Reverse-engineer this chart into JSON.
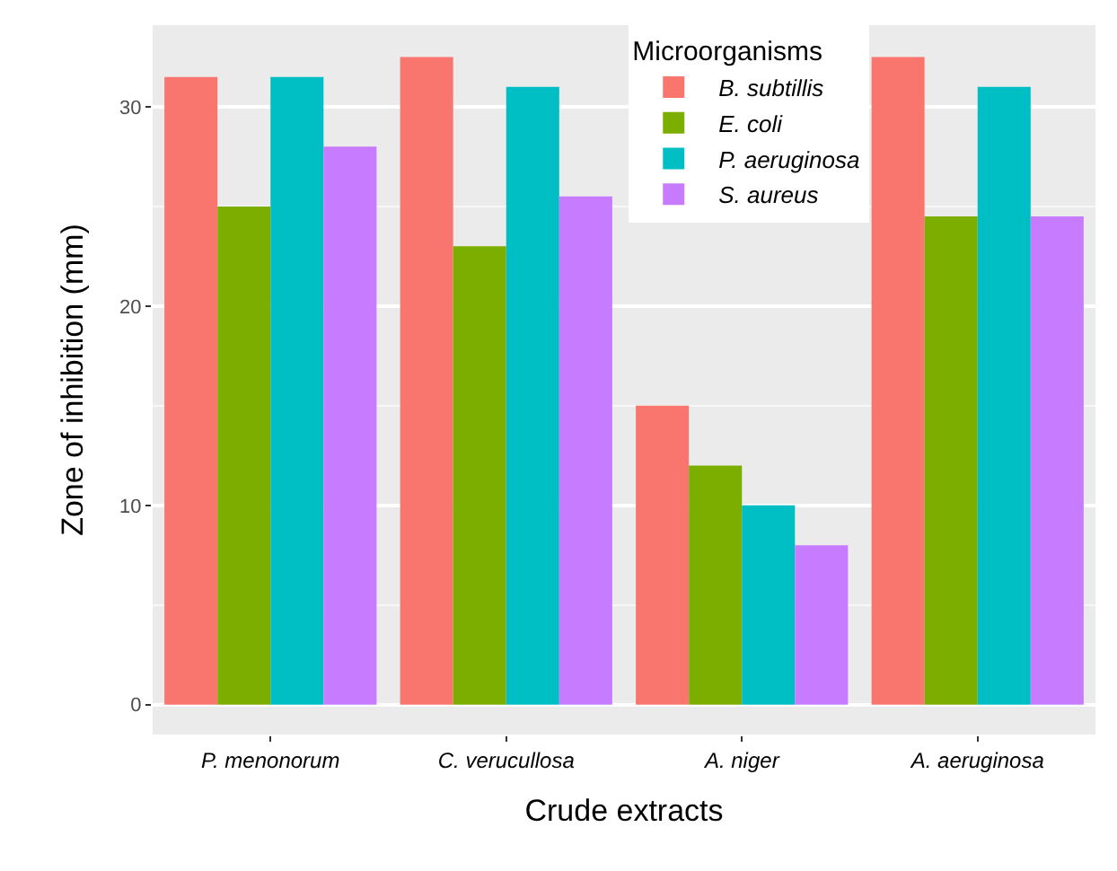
{
  "chart_data": {
    "type": "bar",
    "xlabel": "Crude extracts",
    "ylabel": "Zone of inhibition (mm)",
    "legend_title": "Microorganisms",
    "categories": [
      "P. menonorum",
      "C. verucullosa",
      "A. niger",
      "A. aeruginosa"
    ],
    "series": [
      {
        "name": "B. subtillis",
        "color": "#f8766d",
        "values": [
          31.5,
          32.5,
          15,
          32.5
        ]
      },
      {
        "name": "E. coli",
        "color": "#7cae00",
        "values": [
          25,
          23,
          12,
          24.5
        ]
      },
      {
        "name": "P. aeruginosa",
        "color": "#00bfc4",
        "values": [
          31.5,
          31,
          10,
          31
        ]
      },
      {
        "name": "S. aureus",
        "color": "#c77cff",
        "values": [
          28,
          25.5,
          8,
          24.5
        ]
      }
    ],
    "ylim": [
      -1.5,
      34.1
    ],
    "yticks": [
      0,
      10,
      20,
      30
    ],
    "grid": "y",
    "legend": "top"
  }
}
